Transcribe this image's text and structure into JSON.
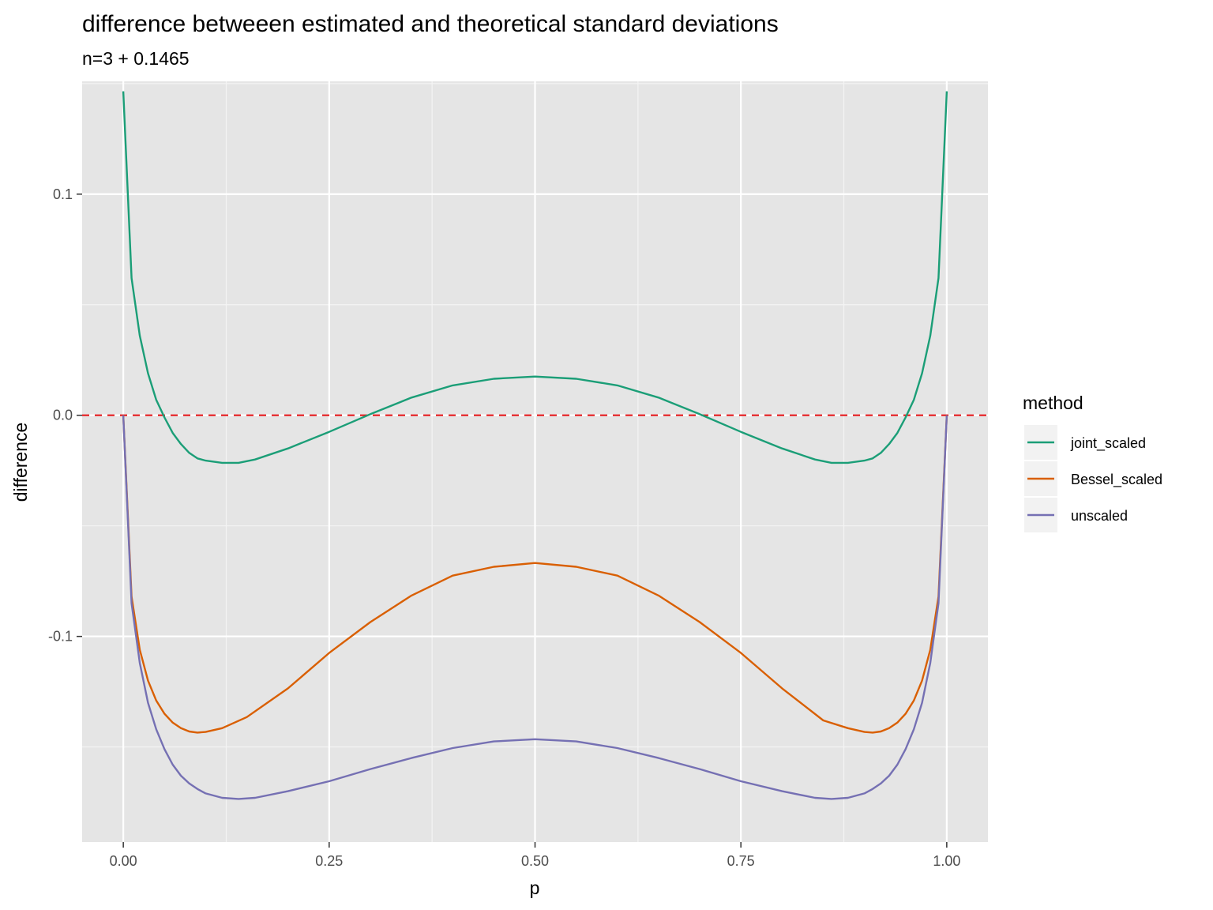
{
  "chart_data": {
    "type": "line",
    "title": "difference betweeen estimated and theoretical standard deviations",
    "subtitle": "n=3 + 0.1465",
    "xlabel": "p",
    "ylabel": "difference",
    "xlim": [
      -0.05,
      1.05
    ],
    "ylim": [
      -0.193,
      0.151
    ],
    "x_ticks": [
      0.0,
      0.25,
      0.5,
      0.75,
      1.0
    ],
    "x_tick_labels": [
      "0.00",
      "0.25",
      "0.50",
      "0.75",
      "1.00"
    ],
    "y_ticks": [
      -0.1,
      0.0,
      0.1
    ],
    "y_tick_labels": [
      "-0.1",
      "0.0",
      "0.1"
    ],
    "grid": true,
    "reference_line": {
      "y": 0.0,
      "style": "dashed",
      "color": "#e41a1c"
    },
    "legend": {
      "title": "method",
      "position": "right"
    },
    "series": [
      {
        "name": "joint_scaled",
        "color": "#1b9e77",
        "x": [
          0,
          0.01,
          0.02,
          0.03,
          0.04,
          0.05,
          0.06,
          0.07,
          0.08,
          0.09,
          0.1,
          0.12,
          0.14,
          0.16,
          0.2,
          0.25,
          0.3,
          0.35,
          0.4,
          0.45,
          0.5,
          0.55,
          0.6,
          0.65,
          0.7,
          0.75,
          0.8,
          0.84,
          0.86,
          0.88,
          0.9,
          0.91,
          0.92,
          0.93,
          0.94,
          0.95,
          0.96,
          0.97,
          0.98,
          0.99,
          1.0
        ],
        "y": [
          0.1465,
          0.062,
          0.036,
          0.019,
          0.007,
          -0.001,
          -0.008,
          -0.013,
          -0.017,
          -0.0195,
          -0.0205,
          -0.0215,
          -0.0215,
          -0.02,
          -0.015,
          -0.0075,
          0.0005,
          0.008,
          0.0135,
          0.0165,
          0.0175,
          0.0165,
          0.0135,
          0.008,
          0.0005,
          -0.0075,
          -0.015,
          -0.02,
          -0.0215,
          -0.0215,
          -0.0205,
          -0.0195,
          -0.017,
          -0.013,
          -0.008,
          -0.001,
          0.007,
          0.019,
          0.036,
          0.062,
          0.1465
        ]
      },
      {
        "name": "Bessel_scaled",
        "color": "#d95f02",
        "x": [
          0,
          0.01,
          0.02,
          0.03,
          0.04,
          0.05,
          0.06,
          0.07,
          0.08,
          0.09,
          0.1,
          0.12,
          0.15,
          0.2,
          0.25,
          0.3,
          0.35,
          0.4,
          0.45,
          0.5,
          0.55,
          0.6,
          0.65,
          0.7,
          0.75,
          0.8,
          0.85,
          0.88,
          0.9,
          0.91,
          0.92,
          0.93,
          0.94,
          0.95,
          0.96,
          0.97,
          0.98,
          0.99,
          1.0
        ],
        "y": [
          0.0,
          -0.082,
          -0.106,
          -0.12,
          -0.129,
          -0.135,
          -0.139,
          -0.1415,
          -0.143,
          -0.1435,
          -0.1432,
          -0.1415,
          -0.1365,
          -0.1235,
          -0.1075,
          -0.0935,
          -0.0815,
          -0.0725,
          -0.0685,
          -0.0668,
          -0.0685,
          -0.0725,
          -0.0815,
          -0.0935,
          -0.1075,
          -0.1235,
          -0.138,
          -0.1415,
          -0.1432,
          -0.1435,
          -0.143,
          -0.1415,
          -0.139,
          -0.135,
          -0.129,
          -0.12,
          -0.106,
          -0.082,
          0.0
        ]
      },
      {
        "name": "unscaled",
        "color": "#7570b3",
        "x": [
          0,
          0.01,
          0.02,
          0.03,
          0.04,
          0.05,
          0.06,
          0.07,
          0.08,
          0.09,
          0.1,
          0.12,
          0.14,
          0.16,
          0.2,
          0.25,
          0.3,
          0.35,
          0.4,
          0.45,
          0.5,
          0.55,
          0.6,
          0.65,
          0.7,
          0.75,
          0.8,
          0.84,
          0.86,
          0.88,
          0.9,
          0.91,
          0.92,
          0.93,
          0.94,
          0.95,
          0.96,
          0.97,
          0.98,
          0.99,
          1.0
        ],
        "y": [
          0.0,
          -0.085,
          -0.112,
          -0.13,
          -0.142,
          -0.151,
          -0.158,
          -0.163,
          -0.1665,
          -0.169,
          -0.171,
          -0.173,
          -0.1735,
          -0.173,
          -0.17,
          -0.1655,
          -0.16,
          -0.155,
          -0.1505,
          -0.1475,
          -0.1465,
          -0.1475,
          -0.1505,
          -0.155,
          -0.16,
          -0.1655,
          -0.17,
          -0.173,
          -0.1735,
          -0.173,
          -0.171,
          -0.169,
          -0.1665,
          -0.163,
          -0.158,
          -0.151,
          -0.142,
          -0.13,
          -0.112,
          -0.085,
          0.0
        ]
      }
    ]
  }
}
